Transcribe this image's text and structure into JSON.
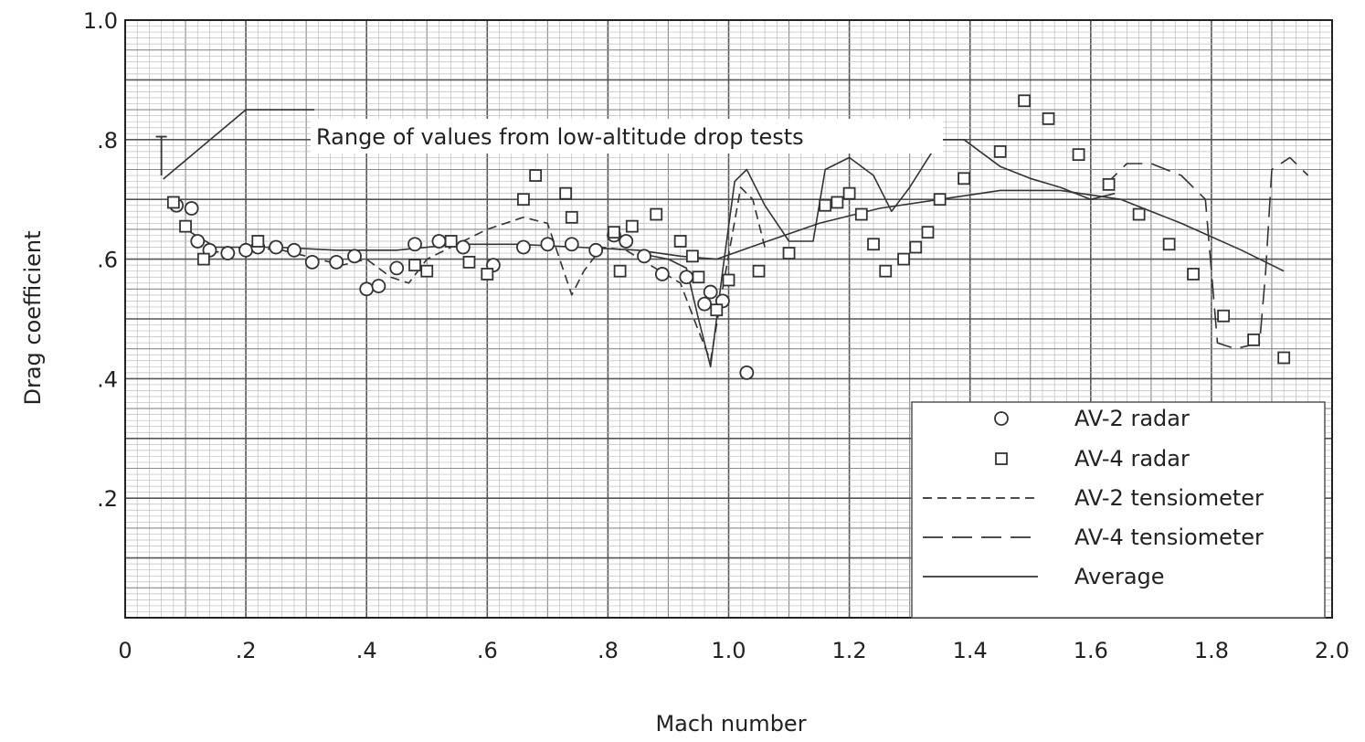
{
  "chart_data": {
    "type": "scatter",
    "xlabel": "Mach number",
    "ylabel": "Drag coefficient",
    "xlim": [
      0,
      2.0
    ],
    "ylim": [
      0,
      1.0
    ],
    "grid": true,
    "legend_position": "bottom-right",
    "x_ticks": [
      {
        "value": 0,
        "label": "0"
      },
      {
        "value": 0.2,
        "label": ".2"
      },
      {
        "value": 0.4,
        "label": ".4"
      },
      {
        "value": 0.6,
        "label": ".6"
      },
      {
        "value": 0.8,
        "label": ".8"
      },
      {
        "value": 1.0,
        "label": "1.0"
      },
      {
        "value": 1.2,
        "label": "1.2"
      },
      {
        "value": 1.4,
        "label": "1.4"
      },
      {
        "value": 1.6,
        "label": "1.6"
      },
      {
        "value": 1.8,
        "label": "1.8"
      },
      {
        "value": 2.0,
        "label": "2.0"
      }
    ],
    "y_ticks": [
      {
        "value": 0.2,
        "label": ".2"
      },
      {
        "value": 0.4,
        "label": ".4"
      },
      {
        "value": 0.6,
        "label": ".6"
      },
      {
        "value": 0.8,
        "label": ".8"
      },
      {
        "value": 1.0,
        "label": "1.0"
      }
    ],
    "annotation": {
      "text": "Range of values from low-altitude drop tests",
      "range": [
        0.74,
        0.805
      ],
      "x": 0.06
    },
    "series": [
      {
        "name": "AV-2 radar",
        "marker": "circle",
        "points": [
          [
            0.085,
            0.69
          ],
          [
            0.11,
            0.685
          ],
          [
            0.12,
            0.63
          ],
          [
            0.14,
            0.615
          ],
          [
            0.17,
            0.61
          ],
          [
            0.2,
            0.615
          ],
          [
            0.22,
            0.62
          ],
          [
            0.25,
            0.62
          ],
          [
            0.28,
            0.615
          ],
          [
            0.31,
            0.595
          ],
          [
            0.35,
            0.595
          ],
          [
            0.38,
            0.605
          ],
          [
            0.4,
            0.55
          ],
          [
            0.42,
            0.555
          ],
          [
            0.45,
            0.585
          ],
          [
            0.48,
            0.625
          ],
          [
            0.52,
            0.63
          ],
          [
            0.56,
            0.62
          ],
          [
            0.61,
            0.59
          ],
          [
            0.66,
            0.62
          ],
          [
            0.7,
            0.625
          ],
          [
            0.74,
            0.625
          ],
          [
            0.78,
            0.615
          ],
          [
            0.81,
            0.64
          ],
          [
            0.83,
            0.63
          ],
          [
            0.86,
            0.605
          ],
          [
            0.89,
            0.575
          ],
          [
            0.93,
            0.57
          ],
          [
            0.96,
            0.525
          ],
          [
            0.97,
            0.545
          ],
          [
            0.99,
            0.53
          ],
          [
            1.03,
            0.41
          ]
        ]
      },
      {
        "name": "AV-4 radar",
        "marker": "square",
        "points": [
          [
            0.08,
            0.695
          ],
          [
            0.1,
            0.655
          ],
          [
            0.13,
            0.6
          ],
          [
            0.22,
            0.63
          ],
          [
            0.48,
            0.59
          ],
          [
            0.5,
            0.58
          ],
          [
            0.54,
            0.63
          ],
          [
            0.57,
            0.595
          ],
          [
            0.6,
            0.575
          ],
          [
            0.66,
            0.7
          ],
          [
            0.68,
            0.74
          ],
          [
            0.73,
            0.71
          ],
          [
            0.74,
            0.67
          ],
          [
            0.81,
            0.645
          ],
          [
            0.82,
            0.58
          ],
          [
            0.84,
            0.655
          ],
          [
            0.88,
            0.675
          ],
          [
            0.92,
            0.63
          ],
          [
            0.94,
            0.605
          ],
          [
            0.95,
            0.57
          ],
          [
            0.98,
            0.515
          ],
          [
            1.0,
            0.565
          ],
          [
            1.05,
            0.58
          ],
          [
            1.1,
            0.61
          ],
          [
            1.16,
            0.69
          ],
          [
            1.18,
            0.695
          ],
          [
            1.2,
            0.71
          ],
          [
            1.22,
            0.675
          ],
          [
            1.24,
            0.625
          ],
          [
            1.26,
            0.58
          ],
          [
            1.29,
            0.6
          ],
          [
            1.31,
            0.62
          ],
          [
            1.33,
            0.645
          ],
          [
            1.35,
            0.7
          ],
          [
            1.39,
            0.735
          ],
          [
            1.45,
            0.78
          ],
          [
            1.49,
            0.865
          ],
          [
            1.53,
            0.835
          ],
          [
            1.58,
            0.775
          ],
          [
            1.63,
            0.725
          ],
          [
            1.68,
            0.675
          ],
          [
            1.73,
            0.625
          ],
          [
            1.77,
            0.575
          ],
          [
            1.82,
            0.505
          ],
          [
            1.87,
            0.465
          ],
          [
            1.92,
            0.435
          ]
        ]
      },
      {
        "name": "AV-2 tensiometer",
        "line_style": "dashed",
        "points": [
          [
            0.14,
            0.61
          ],
          [
            0.2,
            0.62
          ],
          [
            0.26,
            0.615
          ],
          [
            0.32,
            0.6
          ],
          [
            0.36,
            0.59
          ],
          [
            0.4,
            0.6
          ],
          [
            0.44,
            0.57
          ],
          [
            0.47,
            0.56
          ],
          [
            0.5,
            0.6
          ],
          [
            0.54,
            0.62
          ],
          [
            0.6,
            0.65
          ],
          [
            0.66,
            0.67
          ],
          [
            0.7,
            0.66
          ],
          [
            0.72,
            0.6
          ],
          [
            0.74,
            0.54
          ],
          [
            0.76,
            0.58
          ],
          [
            0.79,
            0.62
          ],
          [
            0.83,
            0.615
          ],
          [
            0.87,
            0.59
          ],
          [
            0.92,
            0.56
          ],
          [
            0.95,
            0.48
          ],
          [
            0.97,
            0.43
          ],
          [
            0.99,
            0.55
          ],
          [
            1.02,
            0.72
          ],
          [
            1.04,
            0.7
          ],
          [
            1.06,
            0.62
          ]
        ]
      },
      {
        "name": "AV-4 tensiometer",
        "line_style": "long-dashed",
        "points": [
          [
            1.62,
            0.72
          ],
          [
            1.66,
            0.76
          ],
          [
            1.7,
            0.76
          ],
          [
            1.75,
            0.74
          ],
          [
            1.79,
            0.7
          ],
          [
            1.8,
            0.58
          ],
          [
            1.81,
            0.46
          ],
          [
            1.84,
            0.45
          ],
          [
            1.88,
            0.46
          ],
          [
            1.89,
            0.58
          ],
          [
            1.9,
            0.75
          ],
          [
            1.93,
            0.77
          ],
          [
            1.96,
            0.74
          ]
        ]
      },
      {
        "name": "Average",
        "line_style": "solid",
        "points": [
          [
            0.1,
            0.65
          ],
          [
            0.15,
            0.62
          ],
          [
            0.25,
            0.62
          ],
          [
            0.35,
            0.615
          ],
          [
            0.45,
            0.615
          ],
          [
            0.55,
            0.625
          ],
          [
            0.65,
            0.625
          ],
          [
            0.75,
            0.62
          ],
          [
            0.85,
            0.615
          ],
          [
            0.92,
            0.605
          ],
          [
            0.98,
            0.6
          ],
          [
            1.05,
            0.625
          ],
          [
            1.15,
            0.66
          ],
          [
            1.25,
            0.685
          ],
          [
            1.35,
            0.7
          ],
          [
            1.45,
            0.715
          ],
          [
            1.55,
            0.715
          ],
          [
            1.65,
            0.7
          ],
          [
            1.75,
            0.66
          ],
          [
            1.85,
            0.615
          ],
          [
            1.92,
            0.58
          ]
        ]
      },
      {
        "name": "",
        "line_style": "solid",
        "points": [
          [
            0.85,
            0.61
          ],
          [
            0.9,
            0.6
          ],
          [
            0.93,
            0.585
          ],
          [
            0.95,
            0.5
          ],
          [
            0.97,
            0.42
          ],
          [
            0.99,
            0.58
          ],
          [
            1.01,
            0.73
          ],
          [
            1.03,
            0.75
          ],
          [
            1.06,
            0.69
          ],
          [
            1.1,
            0.63
          ],
          [
            1.14,
            0.63
          ],
          [
            1.16,
            0.75
          ],
          [
            1.2,
            0.77
          ],
          [
            1.24,
            0.74
          ],
          [
            1.27,
            0.68
          ],
          [
            1.3,
            0.72
          ],
          [
            1.35,
            0.8
          ],
          [
            1.39,
            0.8
          ],
          [
            1.45,
            0.755
          ],
          [
            1.5,
            0.735
          ],
          [
            1.55,
            0.72
          ],
          [
            1.6,
            0.7
          ],
          [
            1.64,
            0.71
          ]
        ]
      }
    ]
  }
}
